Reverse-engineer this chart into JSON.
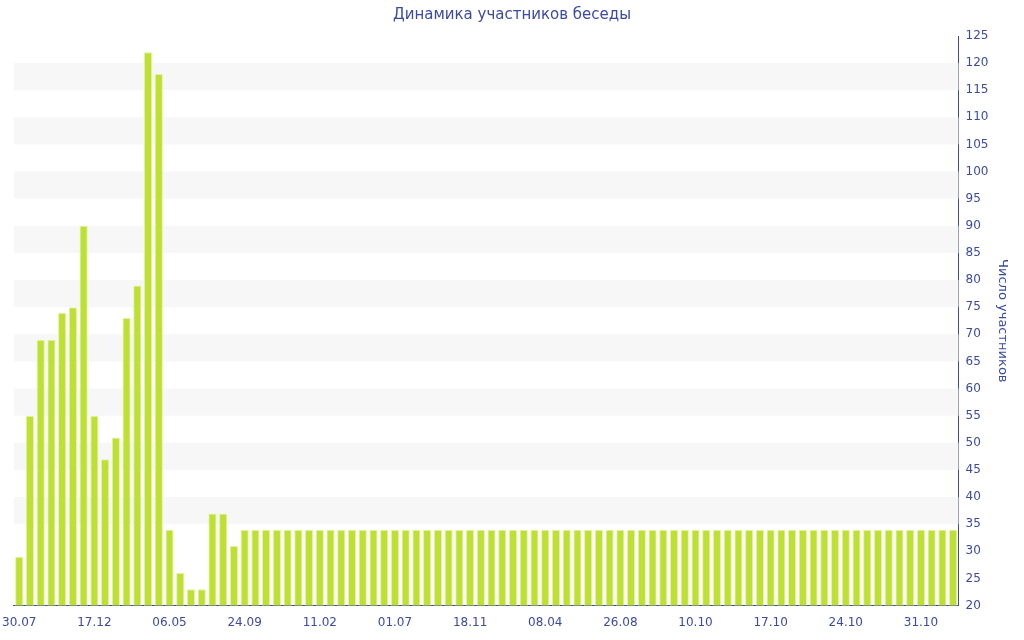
{
  "chart_data": {
    "type": "bar",
    "title": "Динамика участников беседы",
    "ylabel": "Число участников",
    "categories": [
      "30.07",
      null,
      null,
      null,
      null,
      null,
      null,
      "17.12",
      null,
      null,
      null,
      null,
      null,
      null,
      "06.05",
      null,
      null,
      null,
      null,
      null,
      null,
      "24.09",
      null,
      null,
      null,
      null,
      null,
      null,
      "11.02",
      null,
      null,
      null,
      null,
      null,
      null,
      "01.07",
      null,
      null,
      null,
      null,
      null,
      null,
      "18.11",
      null,
      null,
      null,
      null,
      null,
      null,
      "08.04",
      null,
      null,
      null,
      null,
      null,
      null,
      "26.08",
      null,
      null,
      null,
      null,
      null,
      null,
      "10.10",
      null,
      null,
      null,
      null,
      null,
      null,
      "17.10",
      null,
      null,
      null,
      null,
      null,
      null,
      "24.10",
      null,
      null,
      null,
      null,
      null,
      null,
      "31.10",
      null,
      null,
      null
    ],
    "values": [
      29,
      55,
      69,
      69,
      74,
      75,
      90,
      55,
      47,
      51,
      73,
      79,
      122,
      118,
      34,
      26,
      23,
      23,
      37,
      37,
      31,
      34,
      34,
      34,
      34,
      34,
      34,
      34,
      34,
      34,
      34,
      34,
      34,
      34,
      34,
      34,
      34,
      34,
      34,
      34,
      34,
      34,
      34,
      34,
      34,
      34,
      34,
      34,
      34,
      34,
      34,
      34,
      34,
      34,
      34,
      34,
      34,
      34,
      34,
      34,
      34,
      34,
      34,
      34,
      34,
      34,
      34,
      34,
      34,
      34,
      34,
      34,
      34,
      34,
      34,
      34,
      34,
      34,
      34,
      34,
      34,
      34,
      34,
      34,
      34,
      34,
      34,
      34
    ],
    "color": "#bde032",
    "ylim": [
      20,
      125
    ],
    "yticks": [
      20,
      25,
      30,
      35,
      40,
      45,
      50,
      55,
      60,
      65,
      70,
      75,
      80,
      85,
      90,
      95,
      100,
      105,
      110,
      115,
      120,
      125
    ],
    "bands": [
      {
        "axis": "y",
        "from": 35,
        "to": 40,
        "color": "#f7f7f7"
      },
      {
        "axis": "y",
        "from": 45,
        "to": 50,
        "color": "#f7f7f7"
      },
      {
        "axis": "y",
        "from": 55,
        "to": 60,
        "color": "#f7f7f7"
      },
      {
        "axis": "y",
        "from": 65,
        "to": 70,
        "color": "#f7f7f7"
      },
      {
        "axis": "y",
        "from": 75,
        "to": 80,
        "color": "#f7f7f7"
      },
      {
        "axis": "y",
        "from": 85,
        "to": 90,
        "color": "#f7f7f7"
      },
      {
        "axis": "y",
        "from": 95,
        "to": 100,
        "color": "#f7f7f7"
      },
      {
        "axis": "y",
        "from": 105,
        "to": 110,
        "color": "#f7f7f7"
      },
      {
        "axis": "y",
        "from": 115,
        "to": 120,
        "color": "#f7f7f7"
      }
    ],
    "legend": false
  }
}
